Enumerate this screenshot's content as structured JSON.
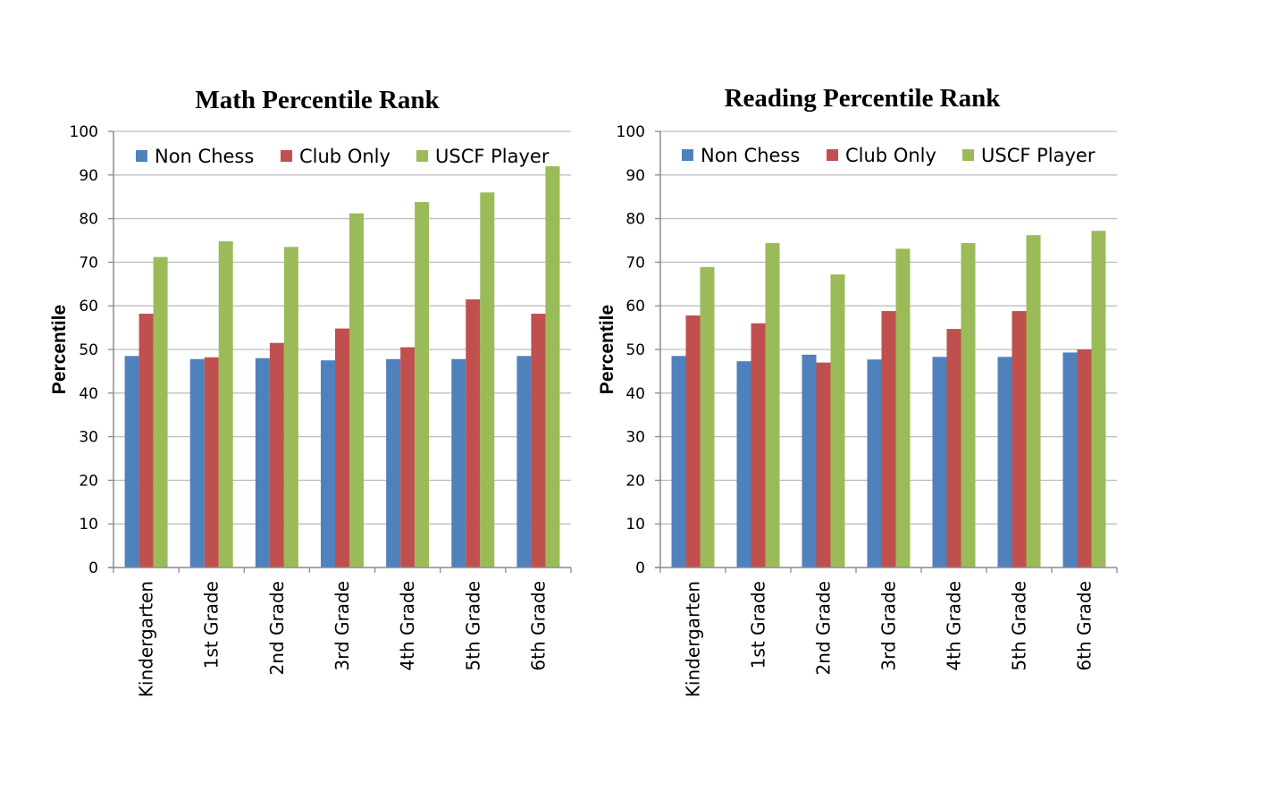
{
  "colors": {
    "Non Chess": "#4f81bd",
    "Club Only": "#c0504d",
    "USCF Player": "#9bbb59",
    "gridline": "#bfbfbf",
    "axis": "#8c8c8c"
  },
  "chart_data": [
    {
      "type": "bar",
      "title": "Math Percentile Rank",
      "xlabel": "",
      "ylabel": "Percentile",
      "ylim": [
        0,
        100
      ],
      "yticks": [
        0,
        10,
        20,
        30,
        40,
        50,
        60,
        70,
        80,
        90,
        100
      ],
      "grid": true,
      "legend": "top",
      "categories": [
        "Kindergarten",
        "1st Grade",
        "2nd Grade",
        "3rd Grade",
        "4th Grade",
        "5th Grade",
        "6th Grade"
      ],
      "series": [
        {
          "name": "Non Chess",
          "values": [
            48.5,
            47.8,
            48.0,
            47.5,
            47.8,
            47.8,
            48.5
          ]
        },
        {
          "name": "Club Only",
          "values": [
            58.2,
            48.2,
            51.5,
            54.8,
            50.5,
            61.5,
            58.2
          ]
        },
        {
          "name": "USCF Player",
          "values": [
            71.2,
            74.8,
            73.5,
            81.2,
            83.8,
            86.0,
            92.0
          ]
        }
      ]
    },
    {
      "type": "bar",
      "title": "Reading Percentile Rank",
      "xlabel": "",
      "ylabel": "Percentile",
      "ylim": [
        0,
        100
      ],
      "yticks": [
        0,
        10,
        20,
        30,
        40,
        50,
        60,
        70,
        80,
        90,
        100
      ],
      "grid": true,
      "legend": "top",
      "categories": [
        "Kindergarten",
        "1st Grade",
        "2nd Grade",
        "3rd Grade",
        "4th Grade",
        "5th Grade",
        "6th Grade"
      ],
      "series": [
        {
          "name": "Non Chess",
          "values": [
            48.5,
            47.3,
            48.8,
            47.7,
            48.3,
            48.3,
            49.3
          ]
        },
        {
          "name": "Club Only",
          "values": [
            57.8,
            56.0,
            47.0,
            58.8,
            54.7,
            58.8,
            50.0
          ]
        },
        {
          "name": "USCF Player",
          "values": [
            68.9,
            74.4,
            67.2,
            73.1,
            74.4,
            76.2,
            77.2
          ]
        }
      ]
    }
  ]
}
